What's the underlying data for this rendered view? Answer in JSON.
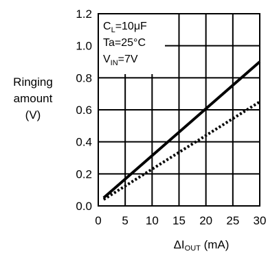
{
  "chart_data": {
    "type": "line",
    "ylabel": [
      "Ringing",
      "amount",
      "(V)"
    ],
    "xlabel": {
      "main": "ΔI",
      "sub": "OUT",
      "unit": " (mA)"
    },
    "xlim": [
      0,
      30
    ],
    "ylim": [
      0.0,
      1.2
    ],
    "xticks": [
      "0",
      "5",
      "10",
      "15",
      "20",
      "25",
      "30"
    ],
    "yticks": [
      "0.0",
      "0.2",
      "0.4",
      "0.6",
      "0.8",
      "1.0",
      "1.2"
    ],
    "grid": true,
    "annotation": [
      {
        "main": "C",
        "sub": "L",
        "rest": "=10μF"
      },
      {
        "main": "Ta=25°C",
        "sub": "",
        "rest": ""
      },
      {
        "main": "V",
        "sub": "IN",
        "rest": "=7V"
      }
    ],
    "series": [
      {
        "style": "solid",
        "x": [
          1,
          30
        ],
        "y": [
          0.05,
          0.9
        ]
      },
      {
        "style": "dotted",
        "x": [
          1,
          30
        ],
        "y": [
          0.04,
          0.65
        ]
      }
    ]
  }
}
